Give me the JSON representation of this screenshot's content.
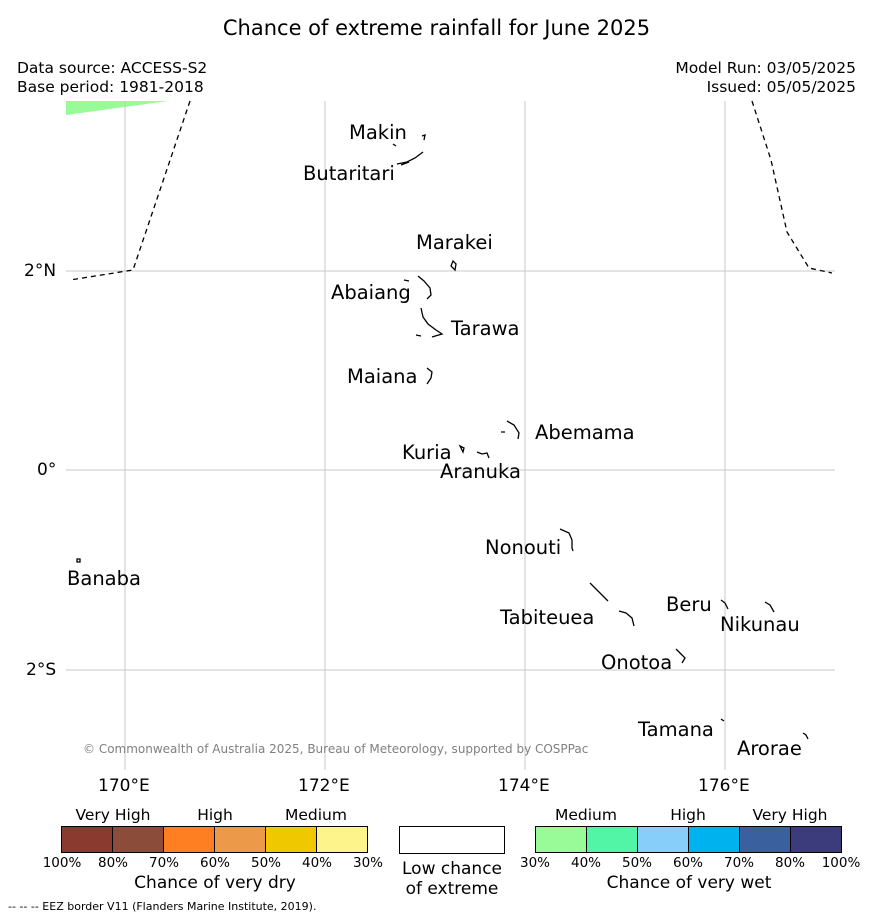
{
  "title": "Chance of extreme rainfall for June 2025",
  "data_source": "Data source: ACCESS-S2",
  "base_period": "Base period: 1981-2018",
  "model_run": "Model Run: 03/05/2025",
  "issued": "Issued: 05/05/2025",
  "credit": "© Commonwealth of Australia 2025, Bureau of Meteorology, supported by COSPPac",
  "footer_note": "--  --  -- EEZ border V11 (Flanders Marine Institute, 2019).",
  "map": {
    "lat_ticks": [
      {
        "value": 2,
        "label": "2°N"
      },
      {
        "value": 0,
        "label": "0°"
      },
      {
        "value": -2,
        "label": "2°S"
      }
    ],
    "lon_ticks": [
      {
        "value": 170,
        "label": "170°E"
      },
      {
        "value": 172,
        "label": "172°E"
      },
      {
        "value": 174,
        "label": "174°E"
      },
      {
        "value": 176,
        "label": "176°E"
      }
    ],
    "gridlines": true,
    "islands": [
      {
        "name": "Makin"
      },
      {
        "name": "Butaritari"
      },
      {
        "name": "Marakei"
      },
      {
        "name": "Abaiang"
      },
      {
        "name": "Tarawa"
      },
      {
        "name": "Maiana"
      },
      {
        "name": "Abemama"
      },
      {
        "name": "Kuria"
      },
      {
        "name": "Aranuka"
      },
      {
        "name": "Nonouti"
      },
      {
        "name": "Banaba"
      },
      {
        "name": "Tabiteuea"
      },
      {
        "name": "Beru"
      },
      {
        "name": "Nikunau"
      },
      {
        "name": "Onotoa"
      },
      {
        "name": "Tamana"
      },
      {
        "name": "Arorae"
      }
    ],
    "shaded_area": {
      "category": "Medium (30–40%) chance of very wet",
      "color": "#98fb98",
      "location": "top-left corner"
    }
  },
  "legend": {
    "dry": {
      "title": "Chance of very dry",
      "categories": [
        "Very High",
        "High",
        "Medium"
      ],
      "ticks": [
        "100%",
        "80%",
        "70%",
        "60%",
        "50%",
        "40%",
        "30%"
      ],
      "colors": [
        "#8b3a2f",
        "#8b4c3a",
        "#fe7f22",
        "#ec9a4a",
        "#f0c800",
        "#fdf48c"
      ]
    },
    "neutral": {
      "line1": "Low chance",
      "line2": "of extreme",
      "color": "#ffffff"
    },
    "wet": {
      "title": "Chance of very wet",
      "categories": [
        "Medium",
        "High",
        "Very High"
      ],
      "ticks": [
        "30%",
        "40%",
        "50%",
        "60%",
        "70%",
        "80%",
        "100%"
      ],
      "colors": [
        "#98fb98",
        "#52f4a5",
        "#87cefa",
        "#00b2ee",
        "#3a619d",
        "#3c3c7c"
      ]
    }
  }
}
